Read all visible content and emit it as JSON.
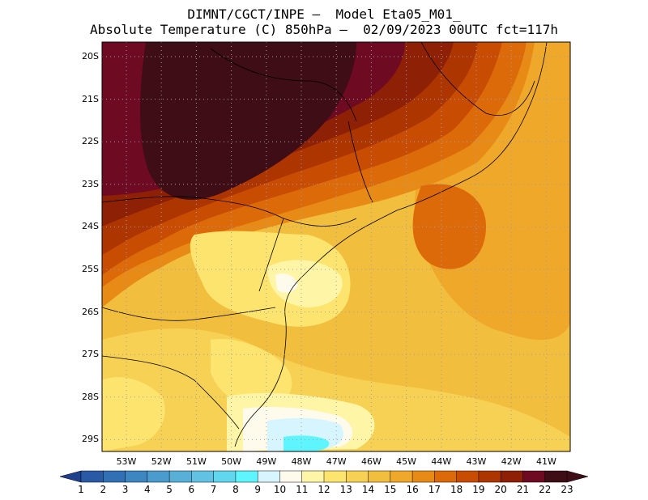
{
  "title": {
    "line1": "DIMNT/CGCT/INPE —  Model Eta05_M01_",
    "line2": "Absolute Temperature (C) 850hPa —  02/09/2023 00UTC fct=117h"
  },
  "lat_labels": [
    "20S",
    "21S",
    "22S",
    "23S",
    "24S",
    "25S",
    "26S",
    "27S",
    "28S",
    "29S"
  ],
  "lon_labels": [
    "53W",
    "52W",
    "51W",
    "50W",
    "49W",
    "48W",
    "47W",
    "46W",
    "45W",
    "44W",
    "43W",
    "42W",
    "41W"
  ],
  "colorbar": {
    "labels": [
      "1",
      "2",
      "3",
      "4",
      "5",
      "6",
      "7",
      "8",
      "9",
      "10",
      "11",
      "12",
      "13",
      "14",
      "15",
      "16",
      "17",
      "18",
      "19",
      "20",
      "21",
      "22",
      "23"
    ],
    "colors": [
      "#1f3f8f",
      "#2a5aa5",
      "#3270b5",
      "#3c86c2",
      "#4a9bce",
      "#58b0d9",
      "#62c2e3",
      "#60d6ef",
      "#5ef5ff",
      "#d6f5ff",
      "#fffbec",
      "#fff5a6",
      "#fde46e",
      "#f7d153",
      "#f2be3d",
      "#efa829",
      "#e88a16",
      "#dd6a08",
      "#c84d03",
      "#ad3600",
      "#8e2105",
      "#6e0a22",
      "#3e0d15"
    ],
    "over_color": "#3e0d15",
    "under_color": "#1f3f8f"
  }
}
